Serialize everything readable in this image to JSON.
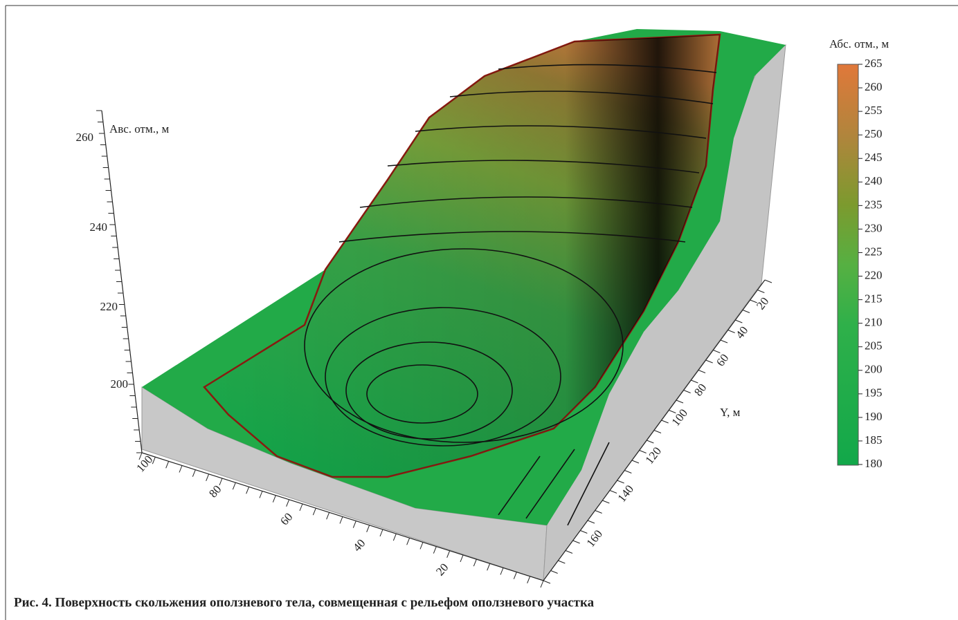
{
  "figure": {
    "z_axis": {
      "label": "Авс. отм., м",
      "ticks": [
        200,
        220,
        240,
        260
      ]
    },
    "x_axis": {
      "ticks": [
        100,
        80,
        60,
        40,
        20
      ]
    },
    "y_axis": {
      "label": "Y, м",
      "ticks": [
        20,
        40,
        60,
        80,
        100,
        120,
        140,
        160
      ]
    },
    "colorbar": {
      "title": "Абс. отм., м",
      "ticks": [
        265,
        260,
        255,
        250,
        245,
        240,
        235,
        230,
        225,
        220,
        215,
        210,
        205,
        200,
        195,
        190,
        185,
        180
      ]
    },
    "caption": "Рис. 4. Поверхность скольжения оползневого тела, совмещенная с рельефом оползневого участка"
  }
}
